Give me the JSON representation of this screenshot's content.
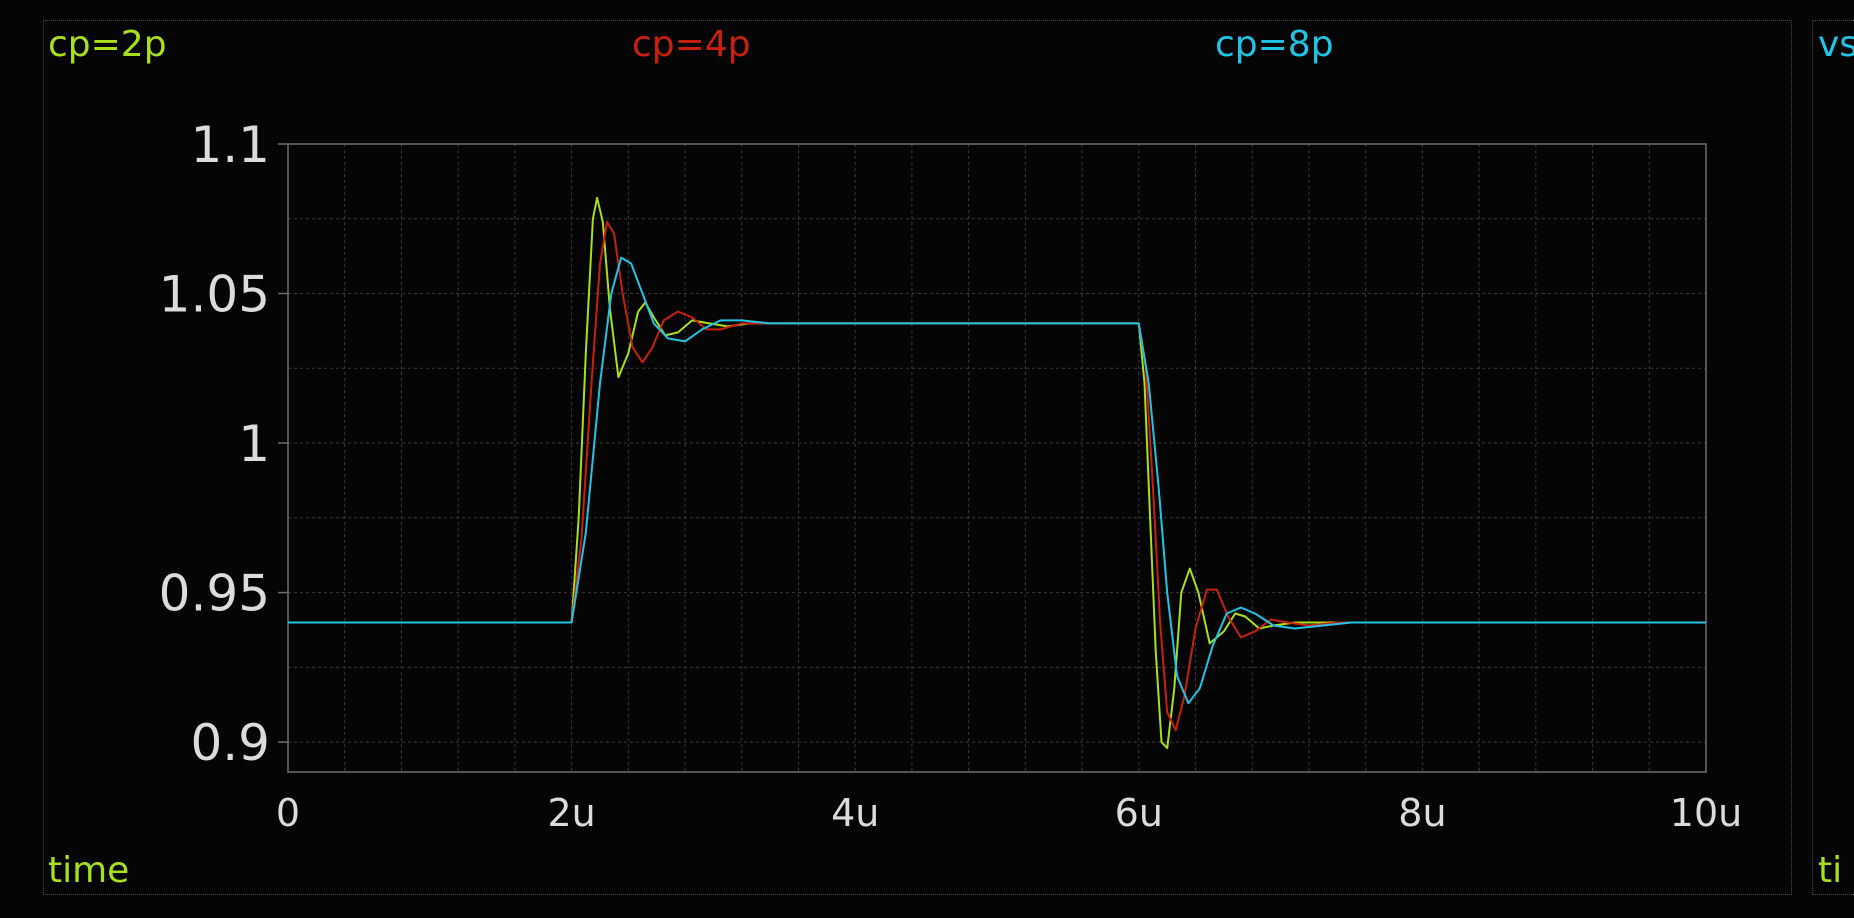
{
  "colors": {
    "background": "#050505",
    "grid": "#3a3a3a",
    "axis": "#6e6e6e",
    "tick_label": "#dcdcdc",
    "series_2p": "#a8e01c",
    "series_4p": "#c8200e",
    "series_8p": "#22c4e6"
  },
  "panel_right": {
    "top_label": "vs",
    "bottom_label": "ti"
  },
  "chart_data": {
    "type": "line",
    "title": "",
    "xlabel": "time",
    "ylabel": "",
    "xlim": [
      0,
      10
    ],
    "ylim": [
      0.89,
      1.1
    ],
    "x_unit": "u",
    "x_ticks": [
      "0",
      "2u",
      "4u",
      "6u",
      "8u",
      "10u"
    ],
    "x_tick_values": [
      0,
      2,
      4,
      6,
      8,
      10
    ],
    "y_ticks": [
      "1.1",
      "1.05",
      "1",
      "0.95",
      "0.9"
    ],
    "y_tick_values": [
      1.1,
      1.05,
      1.0,
      0.95,
      0.9
    ],
    "grid": true,
    "legend": "top",
    "series": [
      {
        "name": "cp=2p",
        "color": "#a8e01c",
        "x": [
          0,
          2.0,
          2.05,
          2.1,
          2.15,
          2.18,
          2.22,
          2.27,
          2.33,
          2.4,
          2.47,
          2.52,
          2.58,
          2.66,
          2.75,
          2.85,
          2.97,
          3.1,
          3.25,
          3.4,
          3.6,
          4.0,
          6.0,
          6.04,
          6.08,
          6.12,
          6.16,
          6.2,
          6.25,
          6.3,
          6.36,
          6.42,
          6.5,
          6.6,
          6.68,
          6.75,
          6.85,
          6.95,
          7.1,
          7.3,
          7.6,
          10
        ],
        "y": [
          0.94,
          0.94,
          0.975,
          1.03,
          1.075,
          1.082,
          1.074,
          1.045,
          1.022,
          1.03,
          1.044,
          1.047,
          1.042,
          1.036,
          1.037,
          1.041,
          1.04,
          1.039,
          1.04,
          1.04,
          1.04,
          1.04,
          1.04,
          1.02,
          0.975,
          0.93,
          0.9,
          0.898,
          0.918,
          0.95,
          0.958,
          0.95,
          0.933,
          0.937,
          0.943,
          0.942,
          0.938,
          0.939,
          0.94,
          0.94,
          0.94,
          0.94
        ]
      },
      {
        "name": "cp=4p",
        "color": "#c8200e",
        "x": [
          0,
          2.0,
          2.07,
          2.14,
          2.2,
          2.25,
          2.3,
          2.36,
          2.43,
          2.5,
          2.57,
          2.65,
          2.75,
          2.85,
          2.95,
          3.05,
          3.2,
          3.4,
          3.6,
          4.0,
          6.0,
          6.05,
          6.1,
          6.15,
          6.2,
          6.26,
          6.32,
          6.4,
          6.48,
          6.55,
          6.63,
          6.72,
          6.82,
          6.93,
          7.05,
          7.2,
          7.4,
          7.7,
          10
        ],
        "y": [
          0.94,
          0.94,
          0.968,
          1.02,
          1.06,
          1.074,
          1.07,
          1.05,
          1.032,
          1.027,
          1.032,
          1.041,
          1.044,
          1.042,
          1.038,
          1.038,
          1.04,
          1.04,
          1.04,
          1.04,
          1.04,
          1.025,
          0.985,
          0.94,
          0.91,
          0.904,
          0.915,
          0.938,
          0.951,
          0.951,
          0.942,
          0.935,
          0.937,
          0.941,
          0.94,
          0.939,
          0.94,
          0.94,
          0.94
        ]
      },
      {
        "name": "cp=8p",
        "color": "#22c4e6",
        "x": [
          0,
          2.0,
          2.1,
          2.2,
          2.28,
          2.35,
          2.42,
          2.5,
          2.58,
          2.68,
          2.8,
          2.92,
          3.05,
          3.2,
          3.4,
          3.6,
          4.0,
          6.0,
          6.07,
          6.14,
          6.2,
          6.27,
          6.35,
          6.43,
          6.52,
          6.62,
          6.72,
          6.82,
          6.95,
          7.1,
          7.3,
          7.5,
          7.8,
          10
        ],
        "y": [
          0.94,
          0.94,
          0.97,
          1.02,
          1.05,
          1.062,
          1.06,
          1.05,
          1.04,
          1.035,
          1.034,
          1.038,
          1.041,
          1.041,
          1.04,
          1.04,
          1.04,
          1.04,
          1.02,
          0.985,
          0.95,
          0.922,
          0.913,
          0.918,
          0.932,
          0.943,
          0.945,
          0.943,
          0.939,
          0.938,
          0.939,
          0.94,
          0.94,
          0.94
        ]
      }
    ]
  }
}
